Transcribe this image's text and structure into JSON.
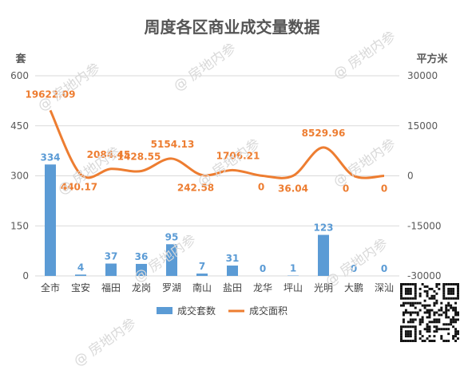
{
  "title": "周度各区商业成交量数据",
  "watermark": "@ 房地内参",
  "chart_data": {
    "type": "bar+line",
    "categories": [
      "全市",
      "宝安",
      "福田",
      "龙岗",
      "罗湖",
      "南山",
      "盐田",
      "龙华",
      "坪山",
      "光明",
      "大鹏",
      "深汕"
    ],
    "series": [
      {
        "name": "成交套数",
        "type": "bar",
        "axis": "left",
        "color": "#5b9bd5",
        "values": [
          334,
          4,
          37,
          36,
          95,
          7,
          31,
          0,
          1,
          123,
          0,
          0
        ]
      },
      {
        "name": "成交面积",
        "type": "line",
        "axis": "right",
        "color": "#ed7d31",
        "smooth": true,
        "values": [
          19622.09,
          440.17,
          2084.45,
          1428.55,
          5154.13,
          242.58,
          1706.21,
          0,
          36.04,
          8529.96,
          0,
          0
        ],
        "labels": [
          "19622.09",
          "440.17",
          "2084.45",
          "1428.55",
          "5154.13",
          "242.58",
          "1706.21",
          "0",
          "36.04",
          "8529.96",
          "0",
          "0"
        ]
      }
    ],
    "y_left": {
      "label": "套",
      "min": 0,
      "max": 600,
      "ticks": [
        0,
        150,
        300,
        450,
        600
      ]
    },
    "y_right": {
      "label": "平方米",
      "min": -30000,
      "max": 30000,
      "ticks": [
        -30000,
        -15000,
        0,
        15000,
        30000
      ]
    },
    "grid": true,
    "legend_position": "bottom"
  }
}
